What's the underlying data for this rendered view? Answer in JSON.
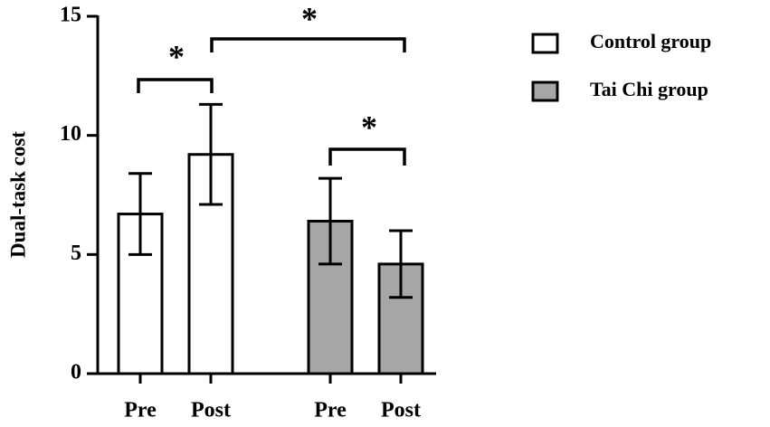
{
  "chart_data": {
    "type": "bar",
    "y_label": "Dual-task cost",
    "categories": [
      "Pre",
      "Post",
      "Pre",
      "Post"
    ],
    "series": [
      {
        "name": "Control group",
        "color": "#ffffff",
        "values": [
          6.7,
          9.2,
          null,
          null
        ],
        "errors": [
          1.7,
          2.1,
          null,
          null
        ]
      },
      {
        "name": "Tai Chi group",
        "color": "#a6a6a6",
        "values": [
          null,
          null,
          6.4,
          4.6
        ],
        "errors": [
          null,
          null,
          1.8,
          1.4
        ]
      }
    ],
    "ylim": [
      0,
      15
    ],
    "yticks": [
      0,
      5,
      10,
      15
    ],
    "annotations": [
      "*",
      "*",
      "*"
    ]
  }
}
